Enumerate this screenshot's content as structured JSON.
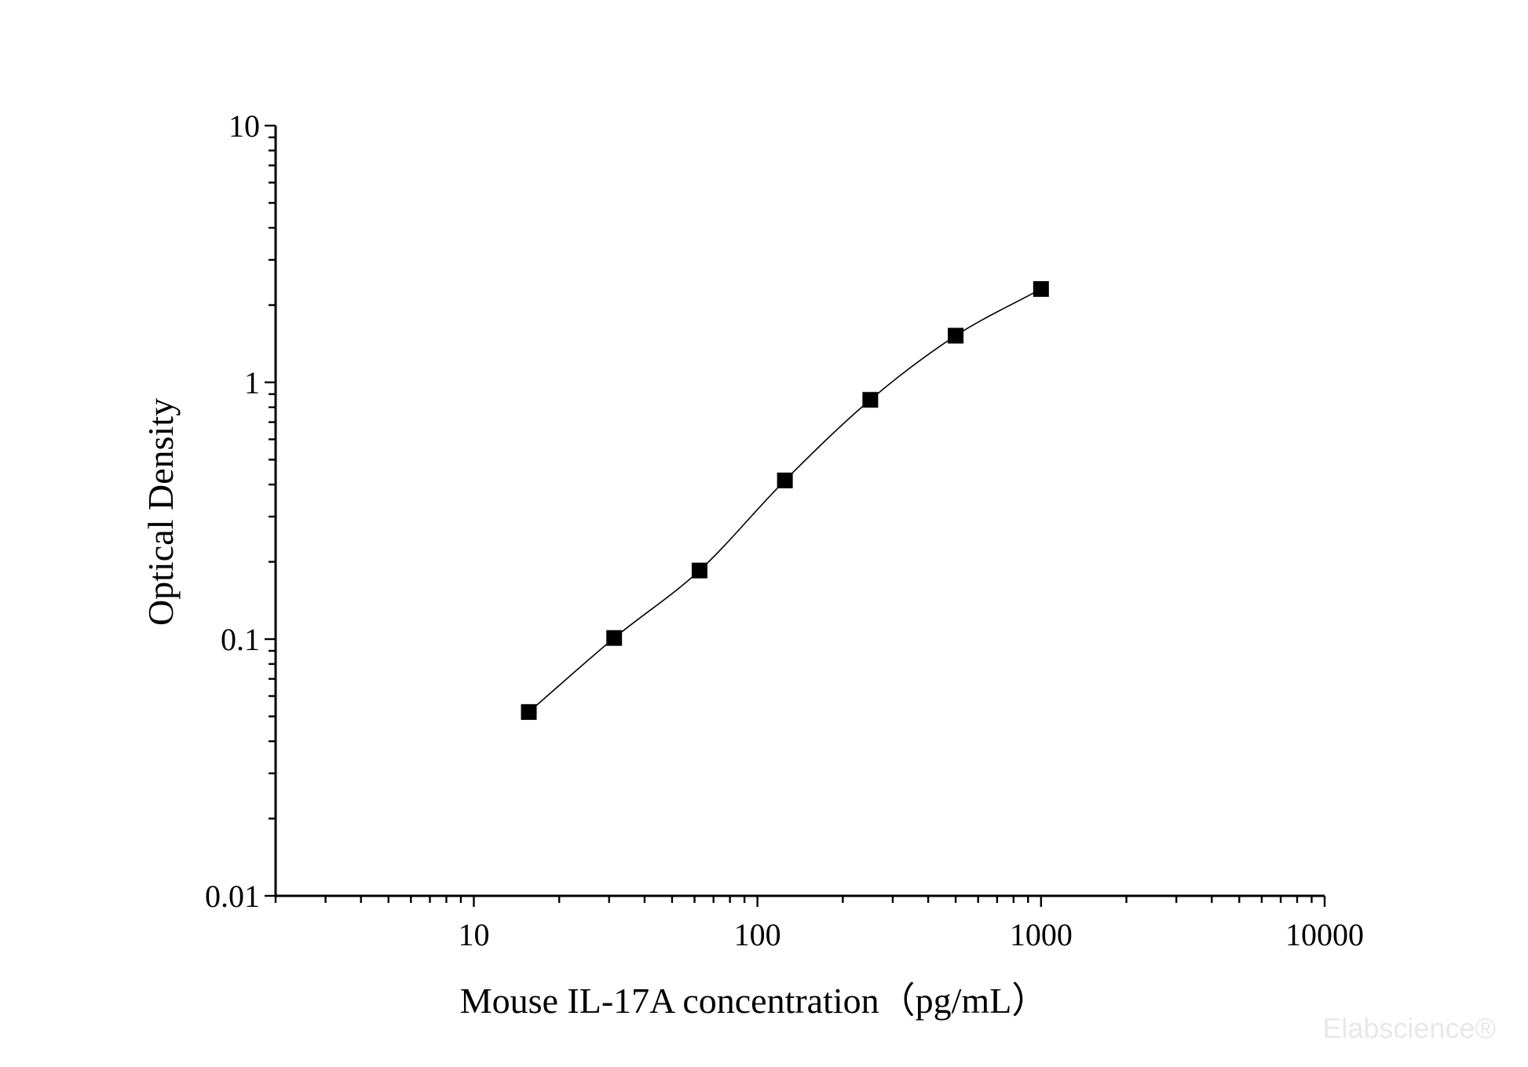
{
  "chart_data": {
    "type": "scatter",
    "title": "",
    "xlabel": "Mouse IL-17A concentration（pg/mL）",
    "ylabel": "Optical Density",
    "xscale": "log",
    "yscale": "log",
    "xlim": [
      2,
      10000
    ],
    "ylim": [
      0.01,
      10
    ],
    "x_ticks": [
      10,
      100,
      1000,
      10000
    ],
    "x_tick_labels": [
      "10",
      "100",
      "1000",
      "10000"
    ],
    "y_ticks": [
      0.01,
      0.1,
      1,
      10
    ],
    "y_tick_labels": [
      "0.01",
      "0.1",
      "1",
      "10"
    ],
    "grid": false,
    "legend": "none",
    "marker": "square",
    "color": "#000000",
    "fit_curve": true,
    "series": [
      {
        "x": [
          15.63,
          31.25,
          62.5,
          125,
          250,
          500,
          1000
        ],
        "y": [
          0.052,
          0.101,
          0.185,
          0.415,
          0.855,
          1.52,
          2.31
        ]
      }
    ]
  },
  "watermark": "Elabscience®"
}
